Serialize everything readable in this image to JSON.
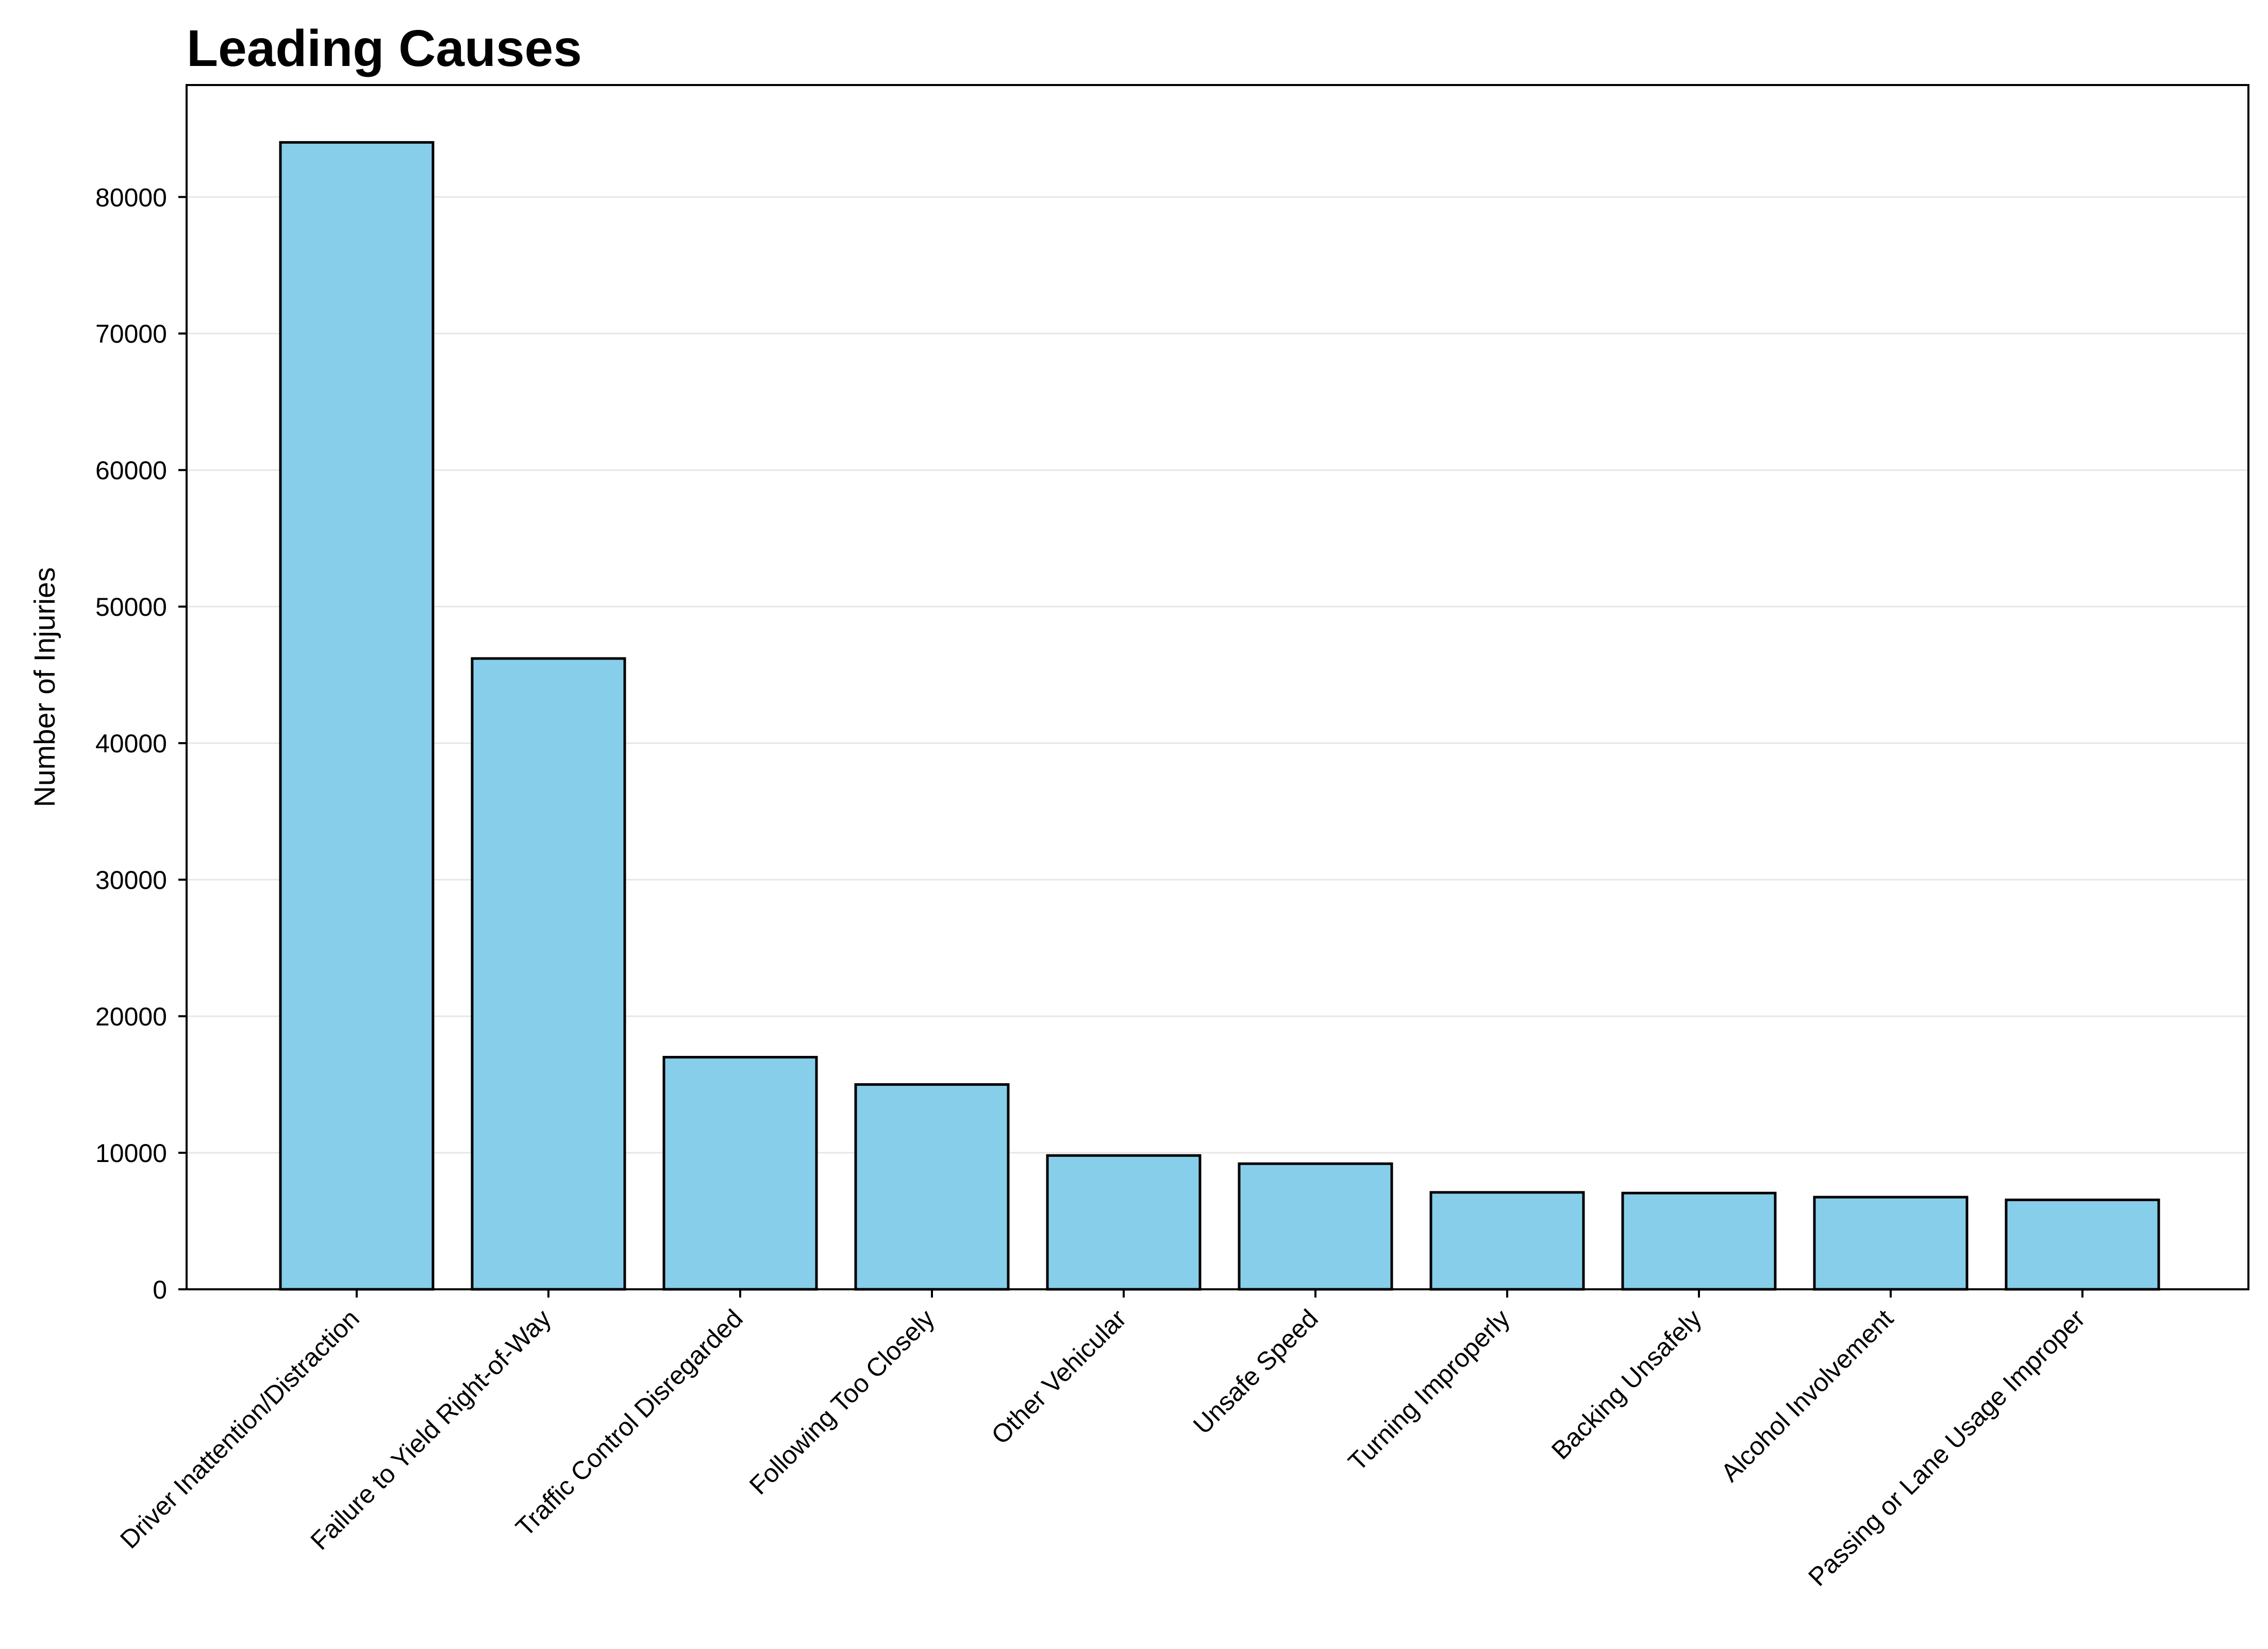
{
  "chart_data": {
    "type": "bar",
    "title": "Leading Causes",
    "xlabel": "",
    "ylabel": "Number of Injuries",
    "categories": [
      "Driver Inattention/Distraction",
      "Failure to Yield Right-of-Way",
      "Traffic Control Disregarded",
      "Following Too Closely",
      "Other Vehicular",
      "Unsafe Speed",
      "Turning Improperly",
      "Backing Unsafely",
      "Alcohol Involvement",
      "Passing or Lane Usage Improper"
    ],
    "values": [
      84000,
      46200,
      17000,
      15000,
      9800,
      9200,
      7100,
      7050,
      6750,
      6550
    ],
    "ylim": [
      0,
      88200
    ],
    "yticks": [
      0,
      10000,
      20000,
      30000,
      40000,
      50000,
      60000,
      70000,
      80000
    ],
    "grid": "horizontal",
    "colors": {
      "bar_fill": "#87CEEB",
      "bar_edge": "#000000",
      "grid": "#e6e6e6",
      "axis": "#000000"
    }
  }
}
